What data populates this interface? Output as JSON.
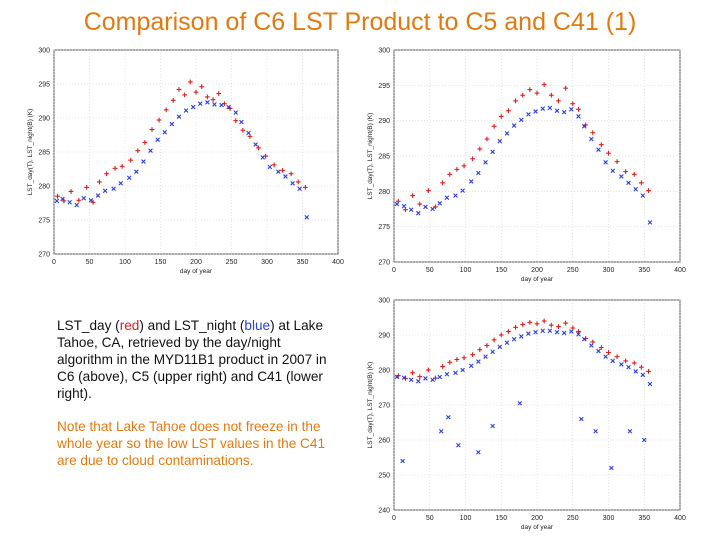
{
  "slide": {
    "title": "Comparison of C6 LST Product to C5 and C41 (1)"
  },
  "description": {
    "part1": "LST_day (",
    "red_word": "red",
    "part2": ") and LST_night (",
    "blue_word": "blue",
    "part3": ") at Lake Tahoe, CA, retrieved by the day/night algorithm in the MYD11B1 product in 2007 in C6 (above), C5 (upper right) and C41 (lower right).",
    "note": "Note that Lake Tahoe does not freeze in the whole year so the low LST values in the C41 are due to cloud contaminations."
  },
  "colors": {
    "title": "#e07a10",
    "day_series": "#d81e1e",
    "night_series": "#2a3fd8",
    "note_text": "#e07a10"
  },
  "chart_data": [
    {
      "id": "c6",
      "type": "scatter",
      "xlabel": "day of year",
      "ylabel": "LST_day(T), LST_night(B) (K)",
      "xlim": [
        0,
        400
      ],
      "ylim": [
        270,
        300
      ],
      "xticks": [
        0,
        50,
        100,
        150,
        200,
        250,
        300,
        350,
        400
      ],
      "yticks": [
        270,
        275,
        280,
        285,
        290,
        295,
        300
      ],
      "grid": true,
      "series": [
        {
          "color": "#d81e1e",
          "marker": "+",
          "values": [
            [
              5,
              278.5
            ],
            [
              14,
              277.8
            ],
            [
              24,
              279.2
            ],
            [
              35,
              277.9
            ],
            [
              46,
              279.8
            ],
            [
              55,
              277.6
            ],
            [
              64,
              280.6
            ],
            [
              74,
              281.8
            ],
            [
              86,
              282.6
            ],
            [
              96,
              282.9
            ],
            [
              108,
              283.8
            ],
            [
              118,
              285.2
            ],
            [
              128,
              286.4
            ],
            [
              138,
              288.3
            ],
            [
              148,
              289.7
            ],
            [
              158,
              291.2
            ],
            [
              168,
              292.6
            ],
            [
              176,
              294.2
            ],
            [
              184,
              293.4
            ],
            [
              192,
              295.3
            ],
            [
              200,
              293.8
            ],
            [
              208,
              294.6
            ],
            [
              216,
              293.1
            ],
            [
              224,
              292.7
            ],
            [
              232,
              293.6
            ],
            [
              240,
              292.1
            ],
            [
              248,
              291.4
            ],
            [
              256,
              289.6
            ],
            [
              266,
              288.2
            ],
            [
              276,
              287.3
            ],
            [
              288,
              285.6
            ],
            [
              298,
              284.4
            ],
            [
              310,
              283.1
            ],
            [
              322,
              282.3
            ],
            [
              334,
              281.8
            ],
            [
              344,
              280.6
            ],
            [
              354,
              279.8
            ]
          ]
        },
        {
          "color": "#2a3fd8",
          "marker": "x",
          "values": [
            [
              4,
              277.8
            ],
            [
              12,
              278.1
            ],
            [
              22,
              277.6
            ],
            [
              32,
              277.2
            ],
            [
              42,
              278.2
            ],
            [
              52,
              277.9
            ],
            [
              62,
              278.6
            ],
            [
              72,
              279.3
            ],
            [
              84,
              279.6
            ],
            [
              94,
              280.4
            ],
            [
              106,
              281.2
            ],
            [
              116,
              282.1
            ],
            [
              126,
              283.6
            ],
            [
              136,
              285.2
            ],
            [
              146,
              286.8
            ],
            [
              156,
              287.9
            ],
            [
              166,
              289.1
            ],
            [
              176,
              290.2
            ],
            [
              186,
              291.1
            ],
            [
              196,
              291.6
            ],
            [
              206,
              292.1
            ],
            [
              216,
              292.3
            ],
            [
              226,
              292.0
            ],
            [
              236,
              291.9
            ],
            [
              246,
              291.6
            ],
            [
              256,
              290.8
            ],
            [
              264,
              289.4
            ],
            [
              274,
              287.8
            ],
            [
              284,
              286.1
            ],
            [
              294,
              284.2
            ],
            [
              304,
              282.8
            ],
            [
              316,
              282.1
            ],
            [
              326,
              281.4
            ],
            [
              336,
              280.4
            ],
            [
              346,
              279.6
            ],
            [
              356,
              275.4
            ]
          ]
        }
      ]
    },
    {
      "id": "c5",
      "type": "scatter",
      "xlabel": "day of year",
      "ylabel": "LST_day(T), LST_night(B) (K)",
      "xlim": [
        0,
        400
      ],
      "ylim": [
        270,
        300
      ],
      "xticks": [
        0,
        50,
        100,
        150,
        200,
        250,
        300,
        350,
        400
      ],
      "yticks": [
        270,
        275,
        280,
        285,
        290,
        295,
        300
      ],
      "grid": true,
      "series": [
        {
          "color": "#d81e1e",
          "marker": "+",
          "values": [
            [
              6,
              278.6
            ],
            [
              16,
              277.4
            ],
            [
              26,
              279.4
            ],
            [
              36,
              278.2
            ],
            [
              48,
              280.1
            ],
            [
              58,
              277.8
            ],
            [
              68,
              281.2
            ],
            [
              78,
              282.4
            ],
            [
              88,
              283.1
            ],
            [
              98,
              283.6
            ],
            [
              110,
              284.6
            ],
            [
              120,
              286.0
            ],
            [
              130,
              287.4
            ],
            [
              140,
              289.2
            ],
            [
              150,
              290.6
            ],
            [
              160,
              291.4
            ],
            [
              170,
              292.8
            ],
            [
              180,
              293.6
            ],
            [
              190,
              294.4
            ],
            [
              200,
              293.9
            ],
            [
              210,
              295.1
            ],
            [
              220,
              293.6
            ],
            [
              230,
              292.8
            ],
            [
              240,
              294.6
            ],
            [
              250,
              292.4
            ],
            [
              258,
              291.6
            ],
            [
              268,
              289.4
            ],
            [
              278,
              288.3
            ],
            [
              290,
              286.6
            ],
            [
              300,
              285.4
            ],
            [
              312,
              284.2
            ],
            [
              324,
              282.8
            ],
            [
              336,
              282.4
            ],
            [
              346,
              281.2
            ],
            [
              356,
              280.1
            ]
          ]
        },
        {
          "color": "#2a3fd8",
          "marker": "x",
          "values": [
            [
              4,
              278.2
            ],
            [
              14,
              277.9
            ],
            [
              24,
              277.4
            ],
            [
              34,
              276.9
            ],
            [
              44,
              277.8
            ],
            [
              54,
              277.5
            ],
            [
              64,
              278.3
            ],
            [
              74,
              279.1
            ],
            [
              86,
              279.4
            ],
            [
              96,
              280.1
            ],
            [
              108,
              281.4
            ],
            [
              118,
              282.6
            ],
            [
              128,
              284.1
            ],
            [
              138,
              285.6
            ],
            [
              148,
              287.1
            ],
            [
              158,
              288.2
            ],
            [
              168,
              289.3
            ],
            [
              178,
              290.1
            ],
            [
              188,
              290.9
            ],
            [
              198,
              291.3
            ],
            [
              208,
              291.7
            ],
            [
              218,
              291.8
            ],
            [
              228,
              291.4
            ],
            [
              238,
              291.2
            ],
            [
              248,
              291.6
            ],
            [
              258,
              290.6
            ],
            [
              266,
              289.2
            ],
            [
              276,
              287.4
            ],
            [
              286,
              285.9
            ],
            [
              296,
              284.1
            ],
            [
              306,
              282.9
            ],
            [
              318,
              282.1
            ],
            [
              328,
              281.2
            ],
            [
              338,
              280.3
            ],
            [
              348,
              279.4
            ],
            [
              358,
              275.6
            ]
          ]
        }
      ]
    },
    {
      "id": "c41",
      "type": "scatter",
      "xlabel": "day of year",
      "ylabel": "LST_day(T), LST_night(B) (K)",
      "xlim": [
        0,
        400
      ],
      "ylim": [
        240,
        300
      ],
      "xticks": [
        0,
        50,
        100,
        150,
        200,
        250,
        300,
        350,
        400
      ],
      "yticks": [
        240,
        250,
        260,
        270,
        280,
        290,
        300
      ],
      "grid": true,
      "series": [
        {
          "color": "#d81e1e",
          "marker": "+",
          "values": [
            [
              6,
              278.4
            ],
            [
              16,
              277.6
            ],
            [
              26,
              279.2
            ],
            [
              36,
              278.1
            ],
            [
              48,
              280.0
            ],
            [
              58,
              277.7
            ],
            [
              68,
              281.0
            ],
            [
              78,
              282.2
            ],
            [
              88,
              283.0
            ],
            [
              98,
              283.5
            ],
            [
              110,
              284.4
            ],
            [
              120,
              285.8
            ],
            [
              130,
              287.0
            ],
            [
              140,
              288.6
            ],
            [
              150,
              290.0
            ],
            [
              160,
              291.0
            ],
            [
              170,
              292.2
            ],
            [
              180,
              293.0
            ],
            [
              190,
              293.6
            ],
            [
              200,
              293.2
            ],
            [
              210,
              294.0
            ],
            [
              220,
              292.8
            ],
            [
              230,
              292.4
            ],
            [
              240,
              293.4
            ],
            [
              250,
              292.0
            ],
            [
              258,
              291.0
            ],
            [
              268,
              289.0
            ],
            [
              278,
              288.0
            ],
            [
              290,
              286.4
            ],
            [
              300,
              285.0
            ],
            [
              312,
              283.8
            ],
            [
              324,
              282.6
            ],
            [
              336,
              282.0
            ],
            [
              346,
              280.8
            ],
            [
              356,
              279.6
            ]
          ]
        },
        {
          "color": "#2a3fd8",
          "marker": "x",
          "values": [
            [
              4,
              278.0
            ],
            [
              14,
              277.8
            ],
            [
              24,
              277.2
            ],
            [
              34,
              276.8
            ],
            [
              44,
              277.6
            ],
            [
              54,
              277.2
            ],
            [
              64,
              278.0
            ],
            [
              74,
              278.8
            ],
            [
              86,
              279.2
            ],
            [
              96,
              280.0
            ],
            [
              108,
              281.2
            ],
            [
              118,
              282.4
            ],
            [
              128,
              283.8
            ],
            [
              138,
              285.2
            ],
            [
              148,
              286.6
            ],
            [
              158,
              287.8
            ],
            [
              168,
              288.8
            ],
            [
              178,
              289.6
            ],
            [
              188,
              290.4
            ],
            [
              198,
              290.8
            ],
            [
              208,
              291.2
            ],
            [
              218,
              291.2
            ],
            [
              228,
              290.8
            ],
            [
              238,
              290.6
            ],
            [
              248,
              291.0
            ],
            [
              258,
              290.2
            ],
            [
              266,
              288.8
            ],
            [
              276,
              287.0
            ],
            [
              286,
              285.4
            ],
            [
              296,
              283.8
            ],
            [
              306,
              282.6
            ],
            [
              318,
              281.6
            ],
            [
              328,
              280.8
            ],
            [
              338,
              279.6
            ],
            [
              348,
              278.6
            ],
            [
              358,
              276.0
            ],
            [
              12,
              254.0
            ],
            [
              66,
              262.5
            ],
            [
              76,
              266.5
            ],
            [
              90,
              258.5
            ],
            [
              118,
              256.5
            ],
            [
              138,
              264.0
            ],
            [
              176,
              270.5
            ],
            [
              262,
              266.0
            ],
            [
              282,
              262.5
            ],
            [
              304,
              252.0
            ],
            [
              330,
              262.5
            ],
            [
              350,
              260.0
            ]
          ]
        }
      ]
    }
  ]
}
